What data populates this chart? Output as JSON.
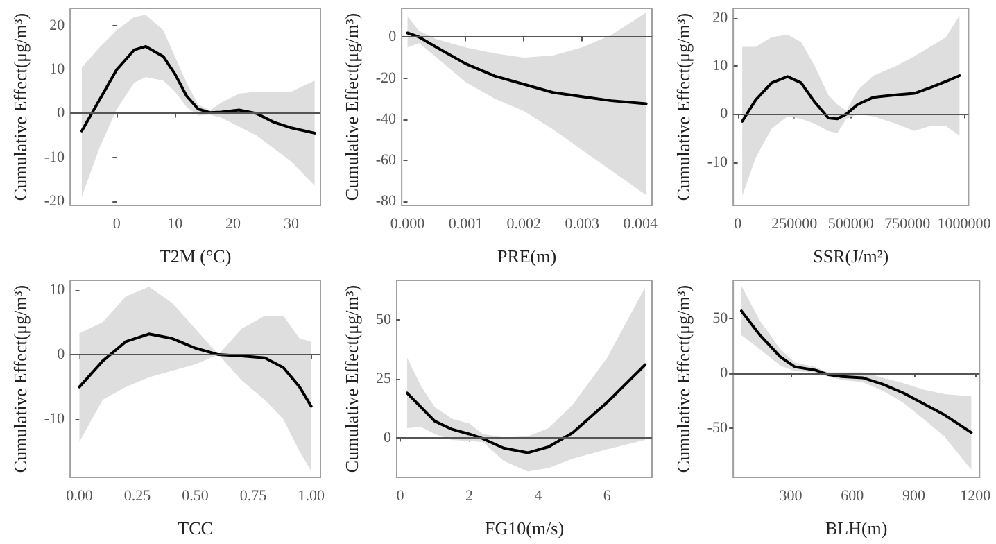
{
  "chart_data": [
    {
      "type": "line",
      "xlabel": "T2M (°C)",
      "ylabel": "Cumulative Effect(μg/m³)",
      "xlim": [
        -8,
        35
      ],
      "ylim": [
        -21,
        24
      ],
      "xticks": [
        0,
        10,
        20,
        30
      ],
      "yticks": [
        -20,
        -10,
        0,
        10,
        20
      ],
      "grid": false,
      "marker": "none",
      "ref_lines": [
        {
          "axis": "y",
          "value": 0
        }
      ],
      "x": [
        -6,
        -3,
        0,
        3,
        5,
        8,
        10,
        12,
        14,
        16,
        18,
        21,
        24,
        27,
        30,
        34
      ],
      "series": [
        {
          "color": "#000000",
          "values": [
            -4,
            3,
            10,
            14.5,
            15.3,
            13,
            9,
            4,
            1,
            0.2,
            0.3,
            0.8,
            0,
            -2,
            -3.3,
            -4.5
          ],
          "lower": [
            -19,
            -8,
            1,
            7,
            8.3,
            7.5,
            5,
            1.5,
            -0.5,
            -0.3,
            -1,
            -3,
            -5,
            -8,
            -11,
            -16.5
          ],
          "upper": [
            10.5,
            15,
            19,
            22,
            22.5,
            19,
            13,
            7,
            2,
            0.7,
            2.5,
            4.5,
            5,
            5,
            5,
            7.5
          ]
        }
      ]
    },
    {
      "type": "line",
      "xlabel": "PRE(m)",
      "ylabel": "Cumulative Effect(μg/m³)",
      "xlim": [
        -0.0001,
        0.0042
      ],
      "ylim": [
        -82,
        14
      ],
      "xticks": [
        {
          "value": 0,
          "label": "0.000"
        },
        0.001,
        0.002,
        0.003,
        0.004
      ],
      "yticks": [
        -80,
        -60,
        -40,
        -20,
        0
      ],
      "grid": false,
      "marker": "none",
      "ref_lines": [
        {
          "axis": "y",
          "value": 0
        }
      ],
      "x": [
        0,
        0.0002,
        0.0005,
        0.001,
        0.0015,
        0.002,
        0.0025,
        0.003,
        0.0035,
        0.0041
      ],
      "series": [
        {
          "color": "#000000",
          "values": [
            2,
            0,
            -5,
            -13,
            -19,
            -23,
            -27,
            -29,
            -31,
            -32.5
          ],
          "lower": [
            -5,
            -3,
            -10,
            -22,
            -30,
            -36,
            -45,
            -55,
            -65,
            -77
          ],
          "upper": [
            10,
            3,
            -1,
            -5,
            -8,
            -10,
            -9,
            -5,
            1,
            12
          ]
        }
      ]
    },
    {
      "type": "line",
      "xlabel": "SSR(J/m²)",
      "ylabel": "Cumulative Effect(μg/m³)",
      "xlim": [
        -20000,
        1020000
      ],
      "ylim": [
        -19,
        22
      ],
      "xticks": [
        0,
        250000,
        500000,
        750000,
        1000000
      ],
      "yticks": [
        -10,
        0,
        10,
        20
      ],
      "grid": false,
      "marker": "none",
      "ref_lines": [
        {
          "axis": "y",
          "value": 0
        }
      ],
      "x": [
        20000,
        80000,
        150000,
        220000,
        280000,
        340000,
        400000,
        440000,
        480000,
        530000,
        600000,
        700000,
        780000,
        850000,
        920000,
        980000
      ],
      "series": [
        {
          "color": "#000000",
          "values": [
            -1.5,
            3,
            6.5,
            7.8,
            6.5,
            2.5,
            -0.8,
            -1,
            0,
            2,
            3.5,
            4,
            4.3,
            5.5,
            6.8,
            8
          ],
          "lower": [
            -17,
            -9,
            -3,
            -0.5,
            -1,
            -2,
            -3.5,
            -4,
            -1,
            0,
            -0.5,
            -2,
            -3.5,
            -2.5,
            -2.5,
            -4.5
          ],
          "upper": [
            14,
            14,
            16,
            16.5,
            15,
            10,
            4,
            2,
            0.7,
            5,
            8,
            10,
            12,
            14,
            16,
            20.5
          ]
        }
      ]
    },
    {
      "type": "line",
      "xlabel": "TCC",
      "ylabel": "Cumulative Effect(μg/m³)",
      "xlim": [
        -0.04,
        1.04
      ],
      "ylim": [
        -19,
        11.5
      ],
      "xticks": [
        {
          "value": 0,
          "label": "0.00"
        },
        0.25,
        {
          "value": 0.5,
          "label": "0.50"
        },
        0.75,
        {
          "value": 1,
          "label": "1.00"
        }
      ],
      "yticks": [
        -10,
        0,
        10
      ],
      "grid": false,
      "marker": "none",
      "ref_lines": [
        {
          "axis": "y",
          "value": 0
        }
      ],
      "x": [
        0,
        0.1,
        0.2,
        0.3,
        0.4,
        0.5,
        0.6,
        0.7,
        0.8,
        0.88,
        0.95,
        1
      ],
      "series": [
        {
          "color": "#000000",
          "values": [
            -5,
            -1,
            2,
            3.2,
            2.5,
            1,
            0,
            -0.2,
            -0.5,
            -2,
            -5,
            -8
          ],
          "lower": [
            -13.5,
            -7,
            -5,
            -3.5,
            -2.5,
            -1.5,
            0,
            -4,
            -7,
            -10,
            -15,
            -18
          ],
          "upper": [
            3.3,
            5,
            9,
            10.5,
            8,
            4,
            0,
            4,
            6,
            6,
            2.5,
            2
          ]
        }
      ]
    },
    {
      "type": "line",
      "xlabel": "FG10(m/s)",
      "ylabel": "Cumulative Effect(μg/m³)",
      "xlim": [
        -0.1,
        7.3
      ],
      "ylim": [
        -17,
        67
      ],
      "xticks": [
        0,
        2,
        4,
        6
      ],
      "yticks": [
        0,
        25,
        50
      ],
      "grid": false,
      "marker": "none",
      "ref_lines": [
        {
          "axis": "y",
          "value": 0
        }
      ],
      "x": [
        0.2,
        0.6,
        1,
        1.5,
        2,
        2.4,
        3,
        3.7,
        4.3,
        5,
        6,
        7.1
      ],
      "series": [
        {
          "color": "#000000",
          "values": [
            19,
            13,
            7,
            3.5,
            1.5,
            -0.5,
            -4.5,
            -6.5,
            -4,
            2,
            15,
            31
          ],
          "lower": [
            4,
            4.5,
            1.5,
            -1,
            -1.5,
            -2,
            -10,
            -14.5,
            -13,
            -9,
            -5,
            -1
          ],
          "upper": [
            34,
            22,
            13,
            8,
            6,
            1.5,
            0,
            0.5,
            4,
            14,
            34,
            64
          ]
        }
      ]
    },
    {
      "type": "line",
      "xlabel": "BLH(m)",
      "ylabel": "Cumulative Effect(μg/m³)",
      "xlim": [
        20,
        1220
      ],
      "ylim": [
        -95,
        85
      ],
      "xticks": [
        300,
        600,
        900,
        1200
      ],
      "yticks": [
        -50,
        0,
        50
      ],
      "grid": false,
      "marker": "none",
      "ref_lines": [
        {
          "axis": "y",
          "value": 0
        }
      ],
      "x": [
        60,
        150,
        250,
        320,
        420,
        480,
        550,
        650,
        750,
        850,
        950,
        1050,
        1180
      ],
      "series": [
        {
          "color": "#000000",
          "values": [
            57,
            35,
            15,
            6,
            3,
            -1,
            -3,
            -4,
            -10,
            -18,
            -28,
            -38,
            -54
          ],
          "lower": [
            35,
            22,
            7,
            2,
            1,
            -3,
            -6,
            -8,
            -16,
            -27,
            -42,
            -58,
            -88
          ],
          "upper": [
            80,
            48,
            22,
            10,
            6,
            1,
            1,
            1,
            -4,
            -9,
            -15,
            -19,
            -21
          ]
        }
      ]
    }
  ]
}
